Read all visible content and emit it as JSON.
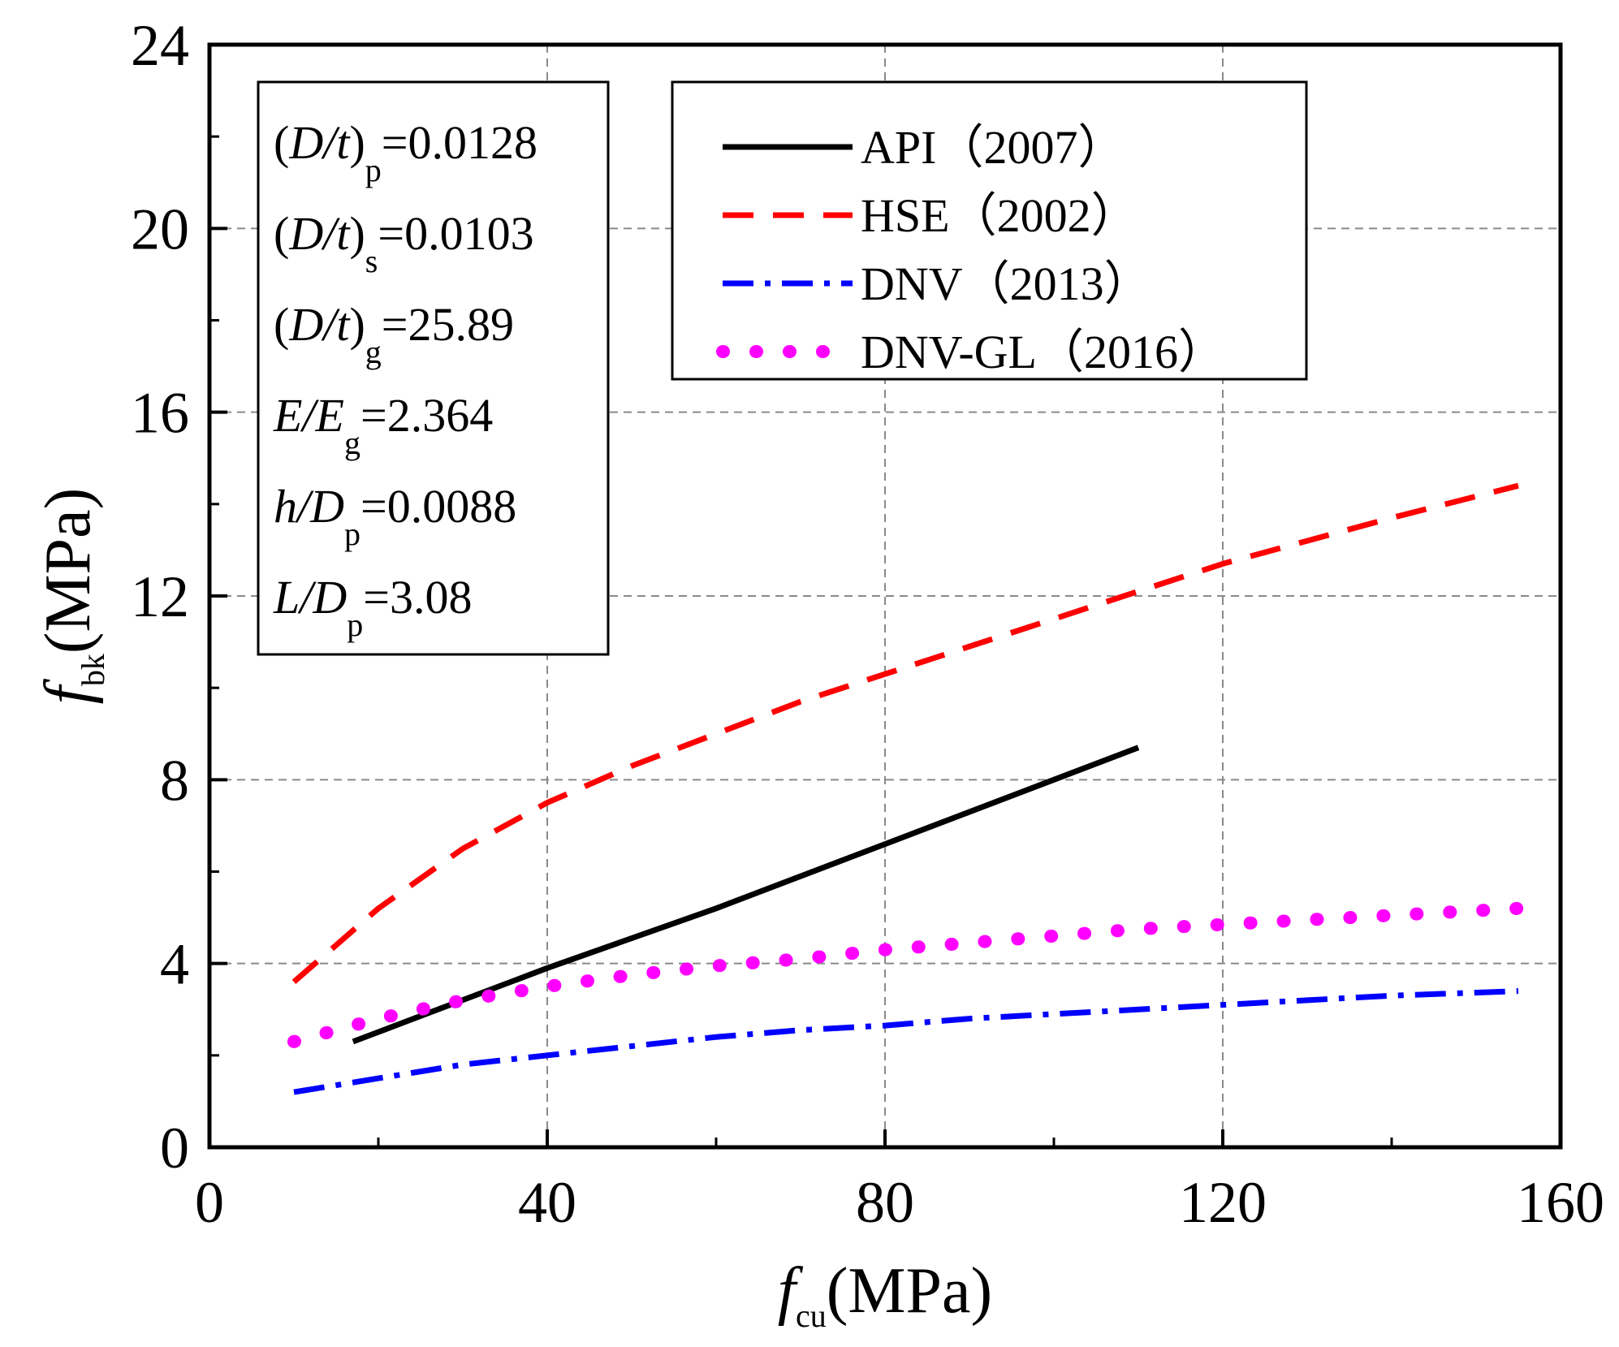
{
  "chart_data": {
    "type": "line",
    "xlim": [
      0,
      160
    ],
    "ylim": [
      0,
      24
    ],
    "xticks": [
      "0",
      "40",
      "80",
      "120",
      "160"
    ],
    "yticks": [
      "0",
      "4",
      "8",
      "12",
      "16",
      "20",
      "24"
    ],
    "grid": true,
    "xlabel": {
      "main": "f",
      "sub": "cu",
      "unit": "(MPa)"
    },
    "ylabel": {
      "main": "f",
      "sub": "bk",
      "unit": "(MPa)"
    },
    "legend_position": "top-center",
    "series": [
      {
        "name": "API（2007）",
        "style": "solid",
        "color": "#000000",
        "x": [
          17,
          40,
          60,
          80,
          100,
          110
        ],
        "y": [
          2.3,
          3.9,
          5.2,
          6.6,
          8.0,
          8.7
        ]
      },
      {
        "name": "HSE（2002）",
        "style": "dashed",
        "color": "#ff0000",
        "x": [
          10,
          20,
          30,
          40,
          50,
          60,
          70,
          80,
          90,
          100,
          110,
          120,
          130,
          140,
          155
        ],
        "y": [
          3.6,
          5.2,
          6.5,
          7.5,
          8.3,
          9.0,
          9.7,
          10.3,
          10.9,
          11.5,
          12.1,
          12.7,
          13.2,
          13.7,
          14.4
        ]
      },
      {
        "name": "DNV（2013）",
        "style": "dashdot",
        "color": "#0000ff",
        "x": [
          10,
          20,
          30,
          40,
          50,
          60,
          70,
          80,
          90,
          100,
          110,
          120,
          130,
          140,
          155
        ],
        "y": [
          1.2,
          1.5,
          1.8,
          2.0,
          2.2,
          2.4,
          2.55,
          2.65,
          2.8,
          2.9,
          3.0,
          3.1,
          3.2,
          3.3,
          3.4
        ]
      },
      {
        "name": "DNV-GL（2016）",
        "style": "dotted",
        "color": "#ff00ff",
        "x": [
          10,
          20,
          30,
          40,
          50,
          60,
          70,
          80,
          90,
          100,
          110,
          120,
          130,
          140,
          155
        ],
        "y": [
          2.3,
          2.8,
          3.2,
          3.5,
          3.75,
          3.95,
          4.1,
          4.3,
          4.45,
          4.6,
          4.75,
          4.85,
          4.95,
          5.05,
          5.2
        ]
      }
    ],
    "annotations": [
      {
        "pre": "(",
        "it": "D/t",
        "post": ")",
        "sub": "p",
        "val": "=0.0128"
      },
      {
        "pre": "(",
        "it": "D/t",
        "post": ")",
        "sub": "s",
        "val": "=0.0103"
      },
      {
        "pre": "(",
        "it": "D/t",
        "post": ")",
        "sub": "g",
        "val": "=25.89"
      },
      {
        "pre": "",
        "it": "E/E",
        "post": "",
        "sub": "g",
        "val": "=2.364"
      },
      {
        "pre": "",
        "it": "h/D",
        "post": "",
        "sub": "p",
        "val": "=0.0088"
      },
      {
        "pre": "",
        "it": "L/D",
        "post": "",
        "sub": "p",
        "val": "=3.08"
      }
    ]
  }
}
